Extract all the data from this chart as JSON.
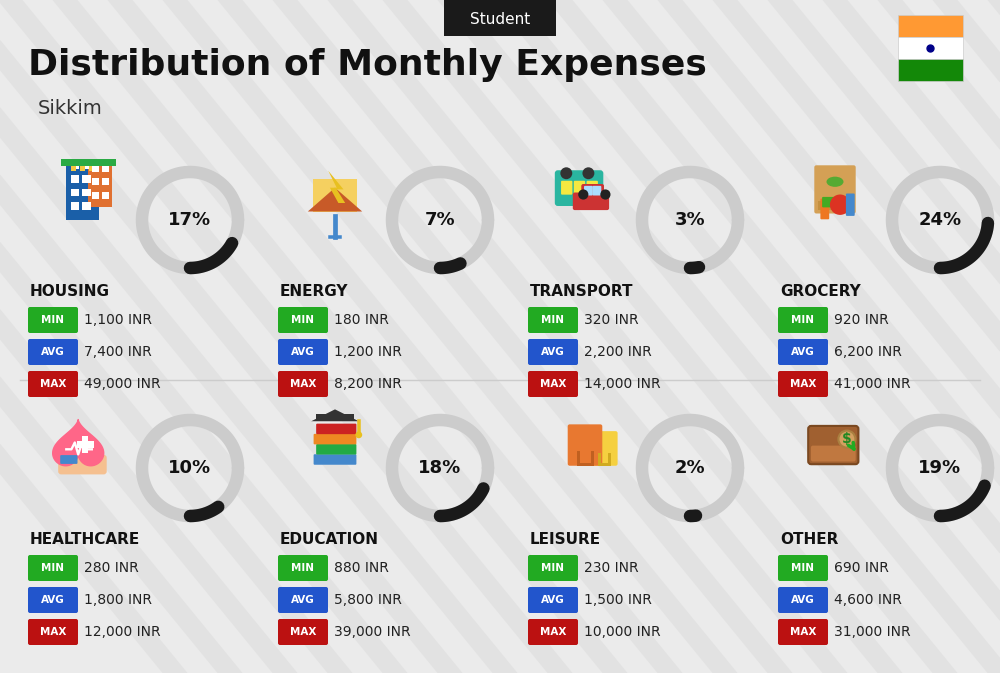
{
  "title": "Distribution of Monthly Expenses",
  "subtitle": "Student",
  "location": "Sikkim",
  "bg_color": "#ebebeb",
  "categories": [
    {
      "name": "HOUSING",
      "pct": 17,
      "min": "1,100 INR",
      "avg": "7,400 INR",
      "max": "49,000 INR",
      "row": 0,
      "col": 0
    },
    {
      "name": "ENERGY",
      "pct": 7,
      "min": "180 INR",
      "avg": "1,200 INR",
      "max": "8,200 INR",
      "row": 0,
      "col": 1
    },
    {
      "name": "TRANSPORT",
      "pct": 3,
      "min": "320 INR",
      "avg": "2,200 INR",
      "max": "14,000 INR",
      "row": 0,
      "col": 2
    },
    {
      "name": "GROCERY",
      "pct": 24,
      "min": "920 INR",
      "avg": "6,200 INR",
      "max": "41,000 INR",
      "row": 0,
      "col": 3
    },
    {
      "name": "HEALTHCARE",
      "pct": 10,
      "min": "280 INR",
      "avg": "1,800 INR",
      "max": "12,000 INR",
      "row": 1,
      "col": 0
    },
    {
      "name": "EDUCATION",
      "pct": 18,
      "min": "880 INR",
      "avg": "5,800 INR",
      "max": "39,000 INR",
      "row": 1,
      "col": 1
    },
    {
      "name": "LEISURE",
      "pct": 2,
      "min": "230 INR",
      "avg": "1,500 INR",
      "max": "10,000 INR",
      "row": 1,
      "col": 2
    },
    {
      "name": "OTHER",
      "pct": 19,
      "min": "690 INR",
      "avg": "4,600 INR",
      "max": "31,000 INR",
      "row": 1,
      "col": 3
    }
  ],
  "min_color": "#22aa22",
  "avg_color": "#2255cc",
  "max_color": "#bb1111",
  "donut_filled_color": "#1a1a1a",
  "donut_empty_color": "#cccccc",
  "india_flag_orange": "#FF9933",
  "india_flag_green": "#138808",
  "stripe_color": "#d8d8d8",
  "divider_color": "#cccccc"
}
